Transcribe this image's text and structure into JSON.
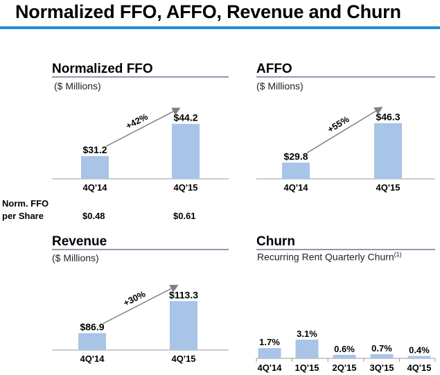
{
  "title": "Normalized FFO, AFFO, Revenue and Churn",
  "colors": {
    "accent_rule": "#1f8dd6",
    "bar": "#a8c4e6",
    "arrow": "#808080",
    "title_rule": "#8c9aac"
  },
  "per_share": {
    "label_line1": "Norm. FFO",
    "label_line2": "per Share",
    "values": [
      "$0.48",
      "$0.61"
    ]
  },
  "chart_data": [
    {
      "type": "bar",
      "title": "Normalized FFO",
      "subtitle": "($ Millions)",
      "categories": [
        "4Q'14",
        "4Q'15"
      ],
      "values": [
        31.2,
        44.2
      ],
      "data_labels": [
        "$31.2",
        "$44.2"
      ],
      "ylim": [
        22,
        50
      ],
      "growth_label": "+42%"
    },
    {
      "type": "bar",
      "title": "AFFO",
      "subtitle": "($ Millions)",
      "categories": [
        "4Q'14",
        "4Q'15"
      ],
      "values": [
        29.8,
        46.3
      ],
      "data_labels": [
        "$29.8",
        "$46.3"
      ],
      "ylim": [
        23,
        52
      ],
      "growth_label": "+55%"
    },
    {
      "type": "bar",
      "title": "Revenue",
      "subtitle": "($ Millions)",
      "categories": [
        "4Q'14",
        "4Q'15"
      ],
      "values": [
        86.9,
        113.3
      ],
      "data_labels": [
        "$86.9",
        "$113.3"
      ],
      "ylim": [
        73,
        130
      ],
      "growth_label": "+30%"
    },
    {
      "type": "bar",
      "title": "Churn",
      "subtitle": "Recurring Rent Quarterly Churn",
      "subtitle_note": "(1)",
      "categories": [
        "4Q'14",
        "1Q'15",
        "2Q'15",
        "3Q'15",
        "4Q'15"
      ],
      "values": [
        1.7,
        3.1,
        0.6,
        0.7,
        0.4
      ],
      "data_labels": [
        "1.7%",
        "3.1%",
        "0.6%",
        "0.7%",
        "0.4%"
      ],
      "ylim": [
        0,
        10
      ]
    }
  ]
}
